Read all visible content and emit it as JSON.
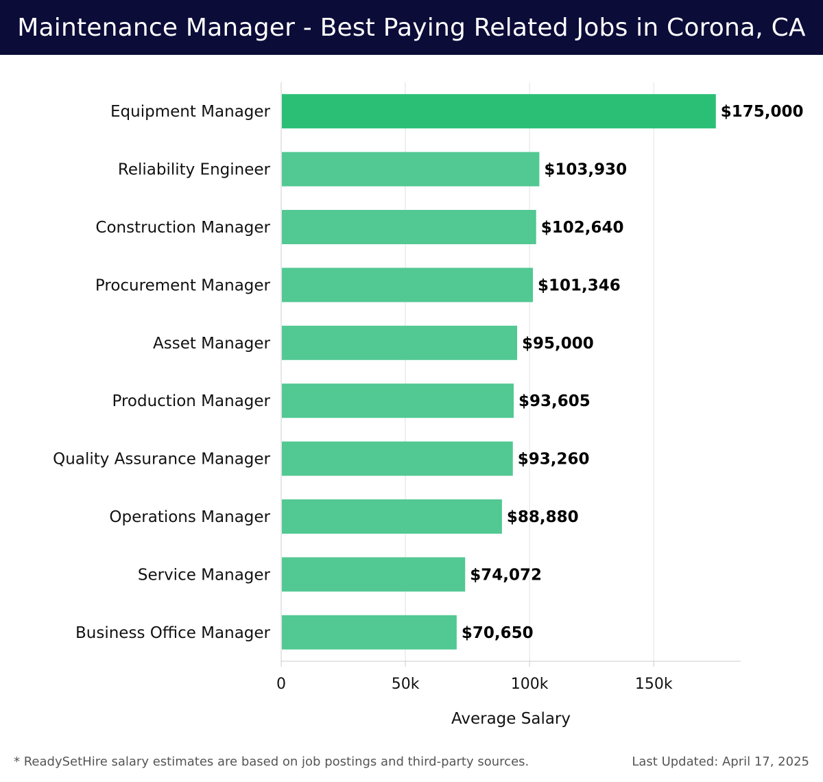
{
  "header": {
    "title": "Maintenance Manager - Best Paying Related Jobs in Corona, CA",
    "background": "#0b0c38"
  },
  "chart_data": {
    "type": "bar",
    "orientation": "horizontal",
    "title": "Maintenance Manager - Best Paying Related Jobs in Corona, CA",
    "xlabel": "Average Salary",
    "ylabel": "",
    "xlim": [
      0,
      185000
    ],
    "xticks": [
      {
        "value": 0,
        "label": "0"
      },
      {
        "value": 50000,
        "label": "50k"
      },
      {
        "value": 100000,
        "label": "100k"
      },
      {
        "value": 150000,
        "label": "150k"
      }
    ],
    "grid": true,
    "categories": [
      "Equipment Manager",
      "Reliability Engineer",
      "Construction Manager",
      "Procurement Manager",
      "Asset Manager",
      "Production Manager",
      "Quality Assurance Manager",
      "Operations Manager",
      "Service Manager",
      "Business Office Manager"
    ],
    "values": [
      175000,
      103930,
      102640,
      101346,
      95000,
      93605,
      93260,
      88880,
      74072,
      70650
    ],
    "value_labels": [
      "$175,000",
      "$103,930",
      "$102,640",
      "$101,346",
      "$95,000",
      "$93,605",
      "$93,260",
      "$88,880",
      "$74,072",
      "$70,650"
    ],
    "colors": {
      "highlight": "#2bbf76",
      "bar": "#52c893"
    }
  },
  "footer": {
    "note": "* ReadySetHire salary estimates are based on job postings and third-party sources.",
    "updated": "Last Updated: April 17, 2025"
  }
}
